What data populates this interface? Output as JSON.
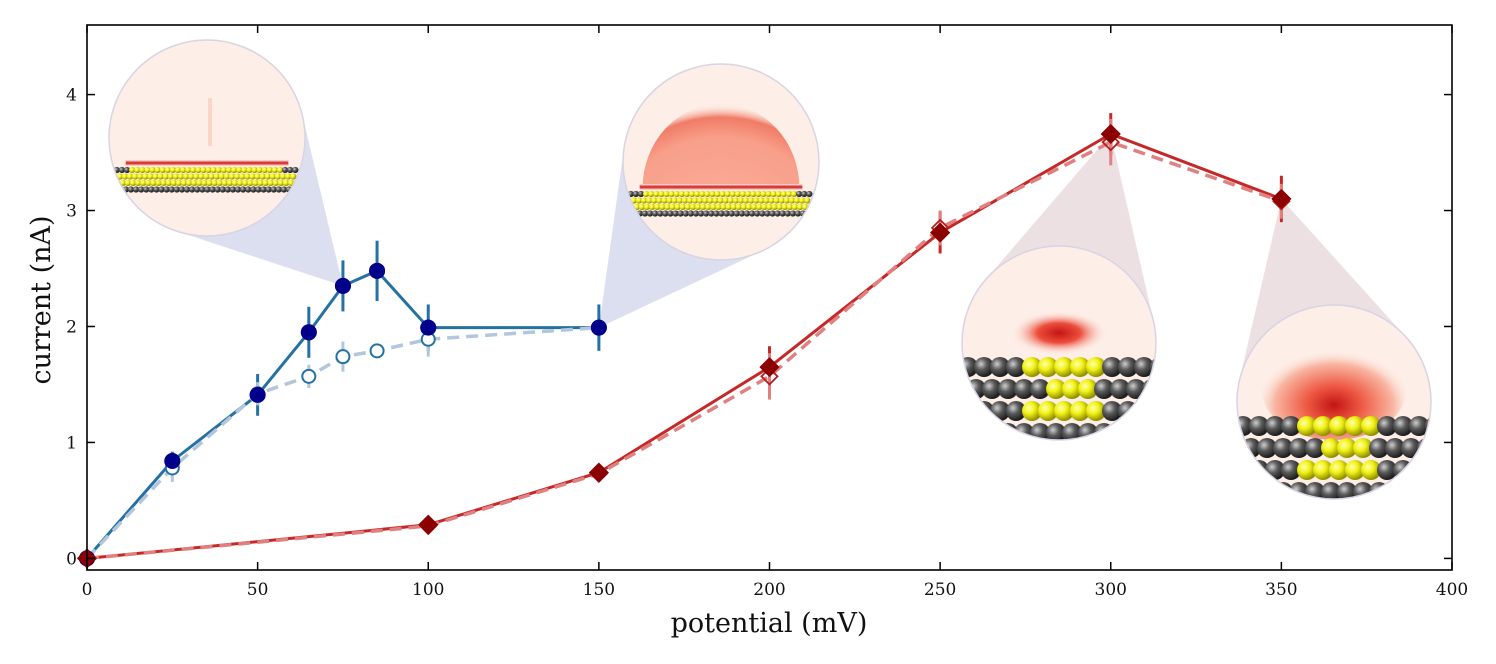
{
  "chart_data": {
    "type": "line",
    "title": "",
    "xlabel": "potential (mV)",
    "ylabel": "current (nA)",
    "xlim": [
      0,
      400
    ],
    "ylim": [
      -0.1,
      4.6
    ],
    "xticks": [
      0,
      50,
      100,
      150,
      200,
      250,
      300,
      350,
      400
    ],
    "yticks": [
      0,
      1,
      2,
      3,
      4
    ],
    "grid": false,
    "legend": null,
    "series": [
      {
        "name": "blue-solid",
        "style": "solid",
        "marker": "filled-circle",
        "color": "#2471a3",
        "marker_color": "#00008b",
        "x": [
          0,
          25,
          50,
          65,
          75,
          85,
          100,
          150
        ],
        "y": [
          0,
          0.84,
          1.41,
          1.95,
          2.35,
          2.48,
          1.99,
          1.99
        ],
        "err": [
          0,
          0.08,
          0.18,
          0.22,
          0.22,
          0.26,
          0.2,
          0.2
        ]
      },
      {
        "name": "blue-dashed",
        "style": "dashed",
        "marker": "open-circle",
        "color": "#b3c6dc",
        "marker_color": "#2471a3",
        "x": [
          0,
          25,
          50,
          65,
          75,
          85,
          100,
          150
        ],
        "y": [
          0,
          0.78,
          1.42,
          1.57,
          1.74,
          1.79,
          1.89,
          1.99
        ],
        "err": [
          0,
          0.12,
          0.1,
          0.1,
          0.13,
          0.0,
          0.15,
          0.0
        ]
      },
      {
        "name": "red-solid",
        "style": "solid",
        "marker": "filled-diamond",
        "color": "#c62828",
        "marker_color": "#8b0000",
        "x": [
          0,
          100,
          150,
          200,
          250,
          300,
          350
        ],
        "y": [
          0,
          0.29,
          0.74,
          1.65,
          2.81,
          3.66,
          3.1
        ],
        "err": [
          0,
          0.03,
          0.05,
          0.18,
          0.18,
          0.18,
          0.2
        ]
      },
      {
        "name": "red-dashed",
        "style": "dashed",
        "marker": "open-diamond",
        "color": "#e08080",
        "marker_color": "#b71c1c",
        "x": [
          0,
          100,
          150,
          200,
          250,
          300,
          350
        ],
        "y": [
          0,
          0.28,
          0.73,
          1.57,
          2.85,
          3.59,
          3.08
        ],
        "err": [
          0,
          0.03,
          0.05,
          0.2,
          0.15,
          0.2,
          0.15
        ]
      }
    ],
    "insets": [
      {
        "name": "inset-blue-75mV",
        "anchor_x": 75,
        "anchor_y": 2.35,
        "cone_color": "#dcdff0",
        "density": "thin-line",
        "atoms": "long-chain"
      },
      {
        "name": "inset-blue-150mV",
        "anchor_x": 150,
        "anchor_y": 1.99,
        "cone_color": "#dcdff0",
        "density": "dome",
        "atoms": "long-chain"
      },
      {
        "name": "inset-red-300mV",
        "anchor_x": 300,
        "anchor_y": 3.66,
        "cone_color": "#ece0e2",
        "density": "small-blob",
        "atoms": "short-cluster"
      },
      {
        "name": "inset-red-350mV",
        "anchor_x": 350,
        "anchor_y": 3.1,
        "cone_color": "#ece0e2",
        "density": "large-blob",
        "atoms": "short-cluster"
      }
    ]
  }
}
